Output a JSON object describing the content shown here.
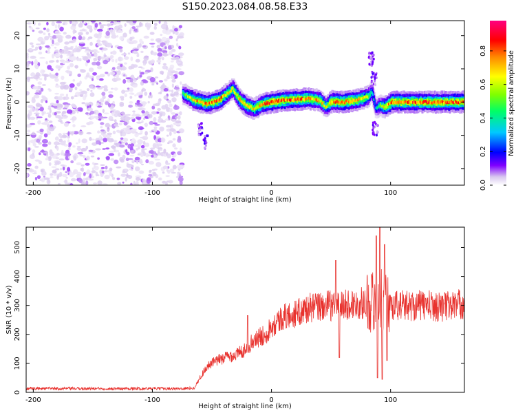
{
  "title": "S150.2023.084.08.58.E33",
  "chart_data": [
    {
      "type": "heatmap",
      "xlabel": "Height of straight line (km)",
      "ylabel": "Frequency (Hz)",
      "xlim": [
        -206,
        162
      ],
      "ylim": [
        -25,
        24.5
      ],
      "xticks": [
        -200,
        -100,
        0,
        100
      ],
      "yticks": [
        -20,
        -10,
        0,
        10,
        20
      ],
      "colorbar": {
        "label": "Normalized spectral amplitude",
        "range": [
          0,
          0.98
        ],
        "ticks": [
          0.0,
          0.2,
          0.4,
          0.6,
          0.8
        ],
        "colormap": [
          "#ffffff",
          "#d9c8ef",
          "#7f00ff",
          "#0000ff",
          "#00c8ff",
          "#00ff66",
          "#7fff00",
          "#ffff00",
          "#ff8800",
          "#ff0000",
          "#ff0080"
        ]
      },
      "noise_region_x": [
        -206,
        -75
      ],
      "ridge": {
        "x": [
          -75,
          -65,
          -55,
          -45,
          -38,
          -33,
          -28,
          -22,
          -15,
          -8,
          0,
          10,
          20,
          30,
          40,
          45,
          50,
          60,
          70,
          80,
          84,
          87,
          90,
          95,
          100,
          110,
          120,
          130,
          140,
          150,
          162
        ],
        "freq": [
          2.5,
          0.5,
          -0.5,
          0.5,
          2.5,
          4.0,
          1.0,
          -1.0,
          -2.0,
          -0.5,
          0.0,
          0.5,
          0.8,
          1.0,
          0.5,
          -1.5,
          0.2,
          0.0,
          0.5,
          1.5,
          3.0,
          -2.0,
          -1.0,
          -1.5,
          0.0,
          0.0,
          0.0,
          0.0,
          0.0,
          0.0,
          0.0
        ],
        "amplitude": [
          0.55,
          0.8,
          0.85,
          0.9,
          0.75,
          0.7,
          0.75,
          0.8,
          0.75,
          0.85,
          0.9,
          0.9,
          0.9,
          0.85,
          0.8,
          0.7,
          0.85,
          0.9,
          0.85,
          0.7,
          0.5,
          0.4,
          0.55,
          0.8,
          0.9,
          0.9,
          0.9,
          0.9,
          0.9,
          0.9,
          0.9
        ]
      }
    },
    {
      "type": "line",
      "xlabel": "Height of straight line (km)",
      "ylabel": "SNR (10 * v/v)",
      "xlim": [
        -206,
        162
      ],
      "ylim": [
        0,
        570
      ],
      "xticks": [
        -200,
        -100,
        0,
        100
      ],
      "yticks": [
        0,
        100,
        200,
        300,
        400,
        500
      ],
      "series": [
        {
          "color": "#e8322e",
          "x": [
            -206,
            -190,
            -170,
            -150,
            -130,
            -110,
            -90,
            -75,
            -65,
            -60,
            -55,
            -50,
            -45,
            -40,
            -35,
            -30,
            -25,
            -20,
            -15,
            -10,
            -5,
            0,
            10,
            20,
            30,
            40,
            50,
            60,
            70,
            80,
            85,
            90,
            95,
            100,
            110,
            120,
            130,
            140,
            150,
            162
          ],
          "y": [
            13,
            13,
            13,
            13,
            13,
            13,
            13,
            13,
            15,
            50,
            85,
            100,
            110,
            120,
            125,
            130,
            140,
            160,
            175,
            190,
            200,
            230,
            260,
            270,
            290,
            295,
            300,
            300,
            305,
            310,
            315,
            320,
            310,
            300,
            300,
            300,
            300,
            295,
            300,
            305
          ],
          "spikes": [
            {
              "x": -20,
              "y": 265
            },
            {
              "x": 54,
              "y": 455
            },
            {
              "x": 57,
              "y": 120
            },
            {
              "x": 88,
              "y": 540
            },
            {
              "x": 89,
              "y": 50
            },
            {
              "x": 91,
              "y": 570
            },
            {
              "x": 93,
              "y": 45
            },
            {
              "x": 95,
              "y": 510
            },
            {
              "x": 97,
              "y": 110
            }
          ]
        }
      ]
    }
  ]
}
